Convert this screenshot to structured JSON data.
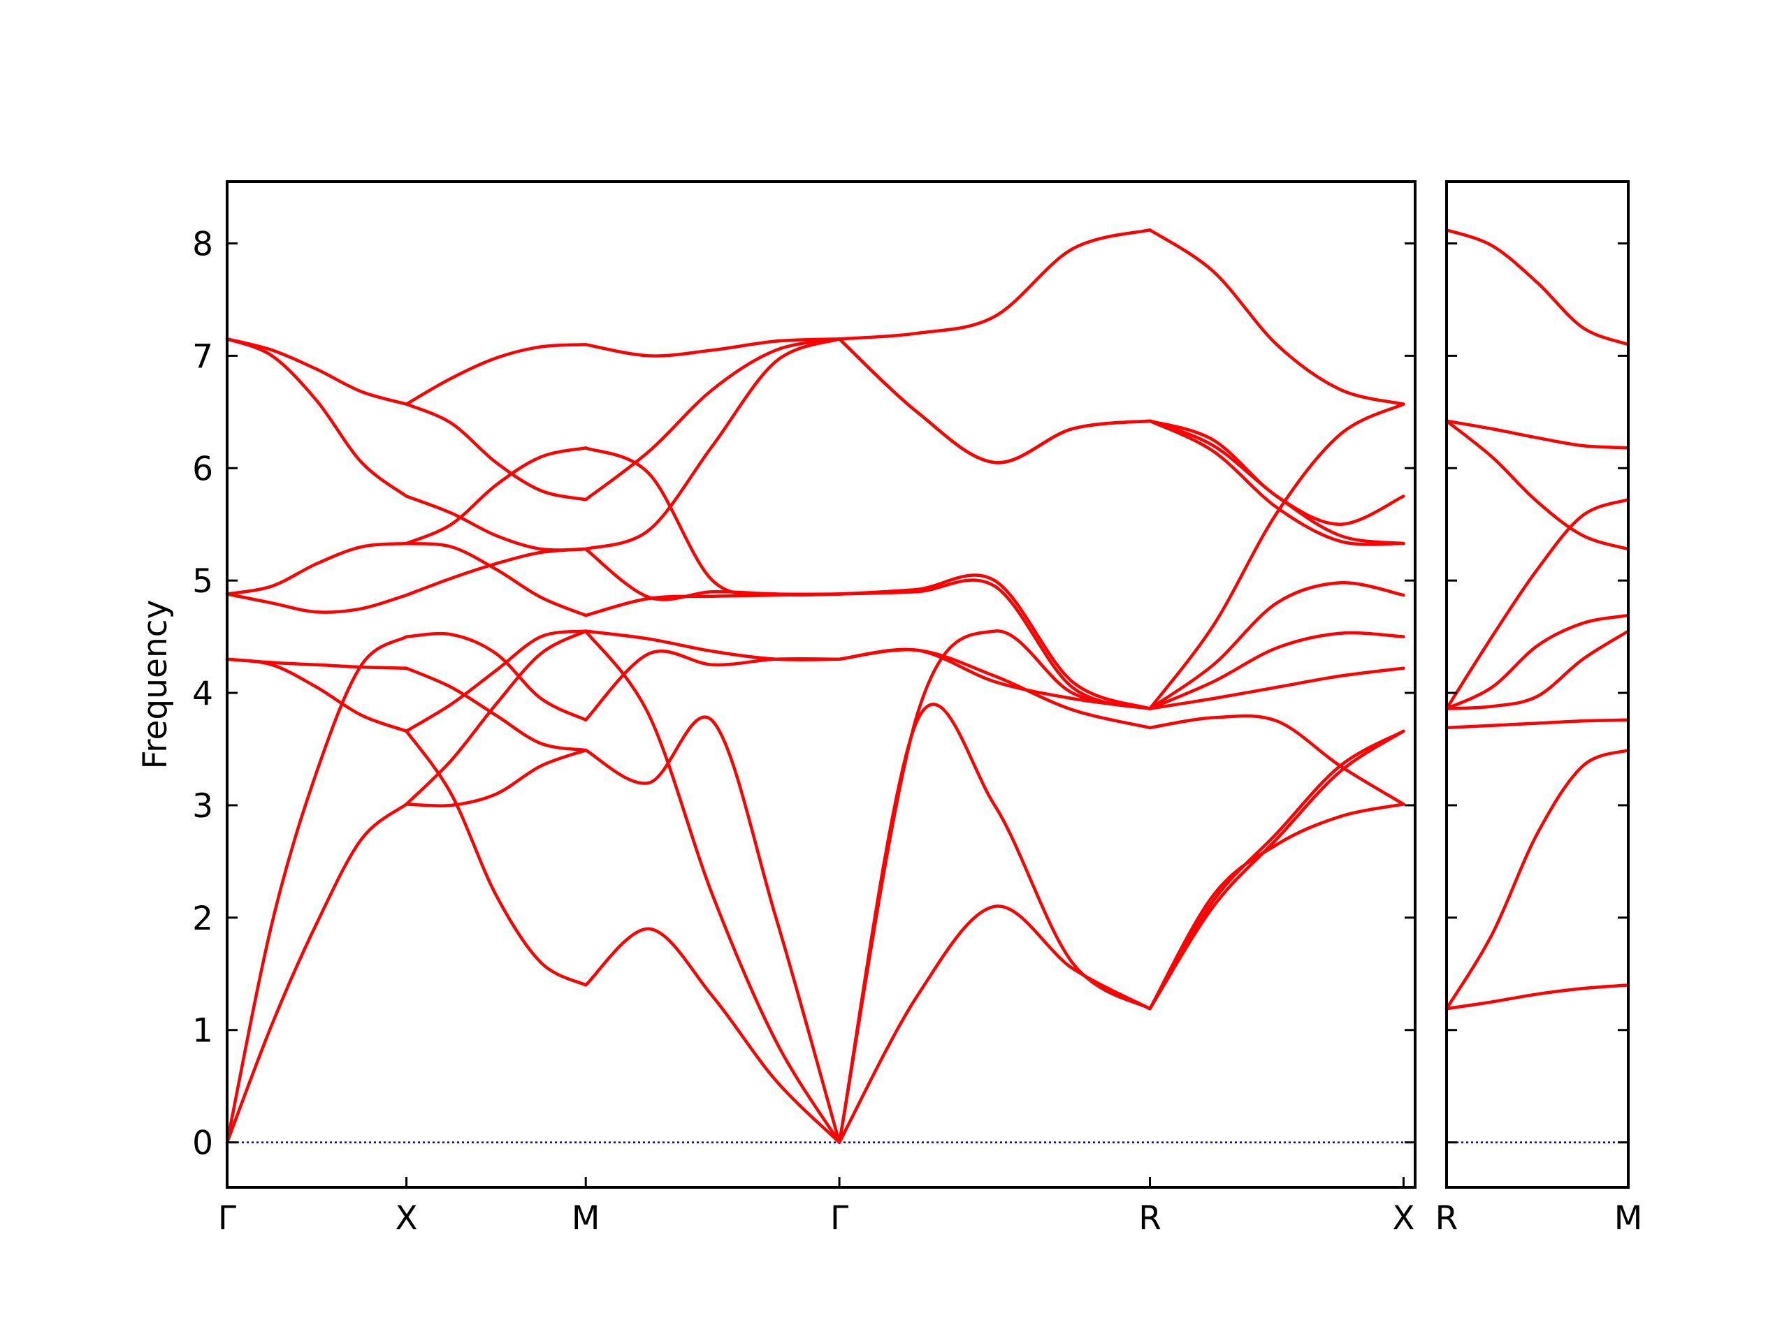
{
  "chart_data": {
    "type": "line",
    "ylabel": "Frequency",
    "ylim": [
      -0.4,
      8.55
    ],
    "yticks": [
      0,
      1,
      2,
      3,
      4,
      5,
      6,
      7,
      8
    ],
    "zero_line": true,
    "colors": {
      "band": "#ff0000",
      "zero_line": "#0000aa",
      "axes": "#000000"
    },
    "panels": [
      {
        "id": "main",
        "xlim": [
          0,
          3.3125
        ],
        "ticks": [
          {
            "x": 0,
            "label": "Γ"
          },
          {
            "x": 0.5,
            "label": "X"
          },
          {
            "x": 1.0,
            "label": "M"
          },
          {
            "x": 1.7071,
            "label": "Γ"
          },
          {
            "x": 2.5731,
            "label": "R"
          },
          {
            "x": 3.2802,
            "label": "X"
          }
        ],
        "segments": [
          {
            "from": "Γ",
            "to": "X",
            "x": [
              0,
              0.125,
              0.25,
              0.375,
              0.5
            ],
            "bands": [
              [
                0,
                1.05,
                1.95,
                2.7,
                3.01
              ],
              [
                0,
                1.95,
                3.3,
                4.25,
                4.5
              ],
              [
                4.3,
                4.25,
                4.05,
                3.8,
                3.66
              ],
              [
                4.3,
                4.27,
                4.25,
                4.23,
                4.22
              ],
              [
                4.88,
                4.8,
                4.72,
                4.75,
                4.87
              ],
              [
                4.88,
                4.95,
                5.15,
                5.3,
                5.33
              ],
              [
                7.15,
                7.0,
                6.6,
                6.05,
                5.75
              ],
              [
                7.15,
                7.05,
                6.88,
                6.68,
                6.57
              ]
            ]
          },
          {
            "from": "X",
            "to": "M",
            "x": [
              0,
              0.125,
              0.25,
              0.375,
              0.5
            ],
            "bands": [
              [
                3.66,
                3.1,
                2.2,
                1.6,
                1.4
              ],
              [
                3.01,
                3.0,
                3.1,
                3.35,
                3.49
              ],
              [
                3.01,
                3.4,
                3.9,
                4.35,
                4.55
              ],
              [
                3.66,
                3.9,
                4.2,
                4.5,
                4.55
              ],
              [
                4.22,
                4.05,
                3.8,
                3.55,
                3.49
              ],
              [
                4.5,
                4.52,
                4.35,
                3.95,
                3.76
              ],
              [
                4.87,
                5.02,
                5.15,
                5.25,
                5.28
              ],
              [
                5.33,
                5.3,
                5.1,
                4.85,
                4.69
              ],
              [
                5.33,
                5.5,
                5.85,
                6.1,
                6.18
              ],
              [
                5.75,
                5.6,
                5.4,
                5.28,
                5.28
              ],
              [
                6.57,
                6.4,
                6.05,
                5.8,
                5.72
              ],
              [
                6.57,
                6.8,
                6.98,
                7.08,
                7.1
              ]
            ]
          },
          {
            "from": "M",
            "to": "Γ",
            "x": [
              0,
              0.1768,
              0.3536,
              0.5303,
              0.7071
            ],
            "bands": [
              [
                1.4,
                1.9,
                1.3,
                0.55,
                0
              ],
              [
                3.49,
                3.2,
                3.75,
                2.0,
                0
              ],
              [
                4.55,
                3.8,
                2.2,
                0.9,
                0
              ],
              [
                3.76,
                4.35,
                4.25,
                4.3,
                4.3
              ],
              [
                4.55,
                4.48,
                4.37,
                4.3,
                4.3
              ],
              [
                4.69,
                4.84,
                4.86,
                4.87,
                4.88
              ],
              [
                5.28,
                4.85,
                4.9,
                4.88,
                4.88
              ],
              [
                5.28,
                5.45,
                6.2,
                6.95,
                7.15
              ],
              [
                6.18,
                5.95,
                5.0,
                4.88,
                4.88
              ],
              [
                5.72,
                6.15,
                6.7,
                7.05,
                7.15
              ],
              [
                7.1,
                7.0,
                7.05,
                7.13,
                7.15
              ]
            ]
          },
          {
            "from": "Γ",
            "to": "R",
            "x": [
              0,
              0.2165,
              0.433,
              0.6495,
              0.866
            ],
            "bands": [
              [
                0,
                1.3,
                2.1,
                1.55,
                1.19
              ],
              [
                0,
                3.75,
                3.0,
                1.6,
                1.19
              ],
              [
                0,
                3.8,
                4.55,
                4.0,
                3.86
              ],
              [
                4.3,
                4.38,
                4.15,
                3.85,
                3.69
              ],
              [
                4.3,
                4.38,
                4.1,
                3.95,
                3.86
              ],
              [
                4.88,
                4.9,
                4.95,
                4.05,
                3.86
              ],
              [
                4.88,
                4.92,
                5.0,
                4.1,
                3.86
              ],
              [
                7.15,
                6.5,
                6.05,
                6.35,
                6.42
              ],
              [
                7.15,
                6.5,
                6.05,
                6.35,
                6.42
              ],
              [
                7.15,
                7.2,
                7.35,
                7.95,
                8.12
              ]
            ]
          },
          {
            "from": "R",
            "to": "X",
            "x": [
              0,
              0.1768,
              0.3536,
              0.5303,
              0.7071
            ],
            "bands": [
              [
                1.19,
                2.2,
                2.65,
                2.9,
                3.01
              ],
              [
                1.19,
                2.1,
                2.7,
                3.3,
                3.66
              ],
              [
                1.19,
                2.15,
                2.75,
                3.35,
                3.66
              ],
              [
                3.69,
                3.78,
                3.75,
                3.35,
                3.01
              ],
              [
                3.86,
                3.95,
                4.05,
                4.15,
                4.22
              ],
              [
                3.86,
                4.1,
                4.4,
                4.53,
                4.5
              ],
              [
                3.86,
                4.25,
                4.8,
                4.98,
                4.87
              ],
              [
                3.86,
                4.6,
                5.6,
                6.3,
                6.57
              ],
              [
                6.42,
                6.15,
                5.65,
                5.35,
                5.33
              ],
              [
                6.42,
                6.2,
                5.75,
                5.4,
                5.33
              ],
              [
                6.42,
                6.25,
                5.75,
                5.5,
                5.75
              ],
              [
                8.12,
                7.75,
                7.1,
                6.7,
                6.57
              ]
            ]
          }
        ]
      },
      {
        "id": "side",
        "xlim": [
          0,
          0.5
        ],
        "ticks": [
          {
            "x": 0,
            "label": "R"
          },
          {
            "x": 0.5,
            "label": "M"
          }
        ],
        "segments": [
          {
            "from": "R",
            "to": "M",
            "x": [
              0,
              0.125,
              0.25,
              0.375,
              0.5
            ],
            "bands": [
              [
                1.19,
                1.25,
                1.32,
                1.37,
                1.4
              ],
              [
                1.19,
                1.85,
                2.75,
                3.35,
                3.49
              ],
              [
                3.69,
                3.71,
                3.73,
                3.75,
                3.76
              ],
              [
                3.86,
                3.88,
                3.97,
                4.3,
                4.55
              ],
              [
                3.86,
                4.05,
                4.42,
                4.62,
                4.69
              ],
              [
                3.86,
                4.5,
                5.1,
                5.58,
                5.72
              ],
              [
                6.42,
                6.1,
                5.7,
                5.4,
                5.28
              ],
              [
                6.42,
                6.35,
                6.27,
                6.2,
                6.18
              ],
              [
                8.12,
                7.98,
                7.65,
                7.25,
                7.1
              ]
            ]
          }
        ]
      }
    ]
  }
}
